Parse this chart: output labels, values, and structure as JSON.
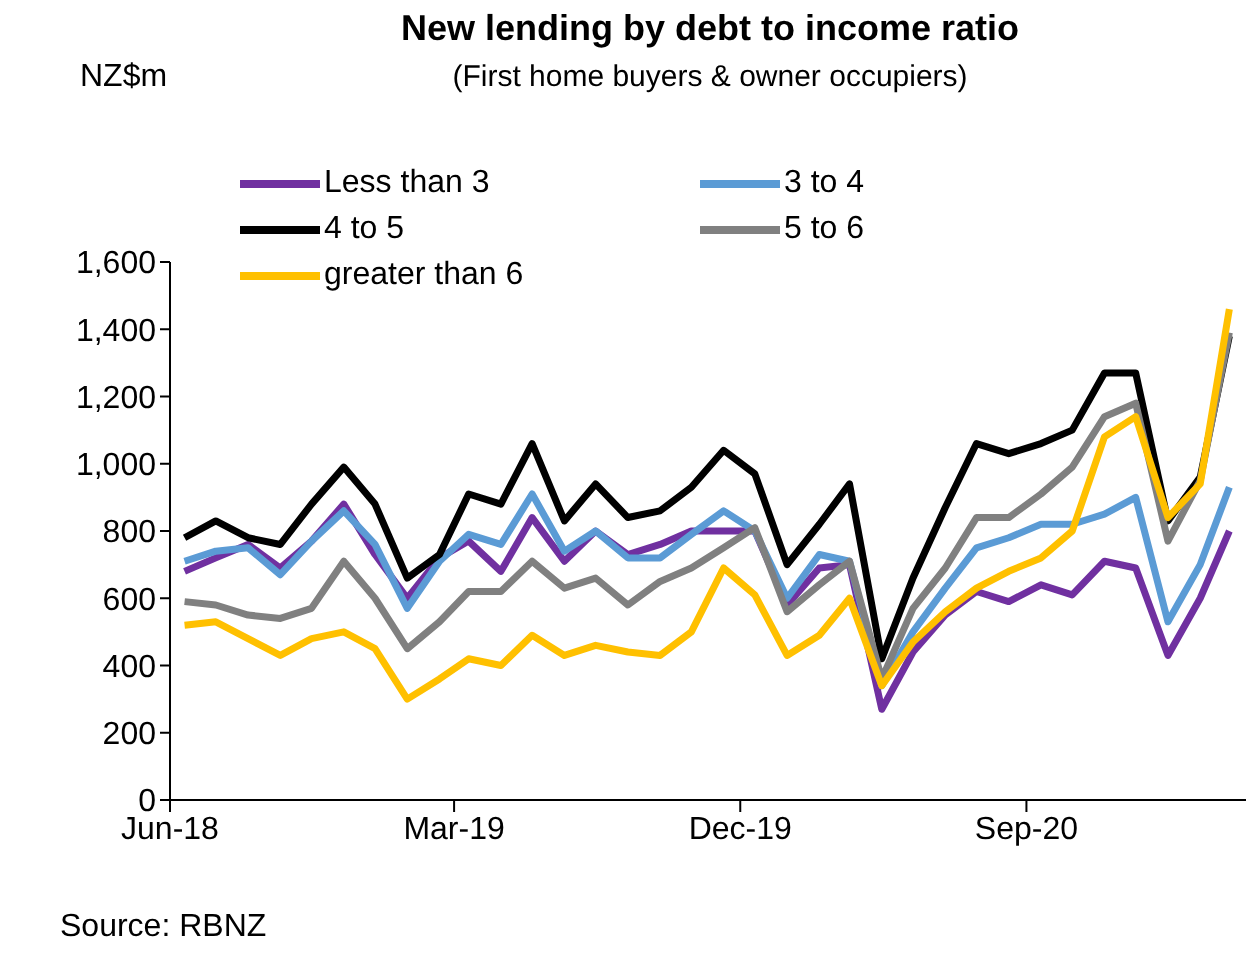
{
  "chart_data": {
    "type": "line",
    "title": "New lending by debt to income ratio",
    "subtitle": "(First home buyers & owner occupiers)",
    "ylabel": "NZ$m",
    "annotations": [
      "Source: RBNZ"
    ],
    "x": [
      "2018-06-15",
      "2018-07-15",
      "2018-08-15",
      "2018-09-15",
      "2018-10-15",
      "2018-11-15",
      "2018-12-15",
      "2019-01-15",
      "2019-02-15",
      "2019-03-15",
      "2019-04-15",
      "2019-05-15",
      "2019-06-15",
      "2019-07-15",
      "2019-08-15",
      "2019-09-15",
      "2019-10-15",
      "2019-11-15",
      "2019-12-15",
      "2020-01-15",
      "2020-02-15",
      "2020-03-15",
      "2020-04-15",
      "2020-05-15",
      "2020-06-15",
      "2020-07-15",
      "2020-08-15",
      "2020-09-15",
      "2020-10-15",
      "2020-11-15",
      "2020-12-15",
      "2021-01-15",
      "2021-02-15",
      "2021-03-15"
    ],
    "xlim": [
      "2018-06-01",
      "2021-03-31"
    ],
    "xticks": [
      {
        "value": "2018-06-01",
        "label": "Jun-18"
      },
      {
        "value": "2019-03-01",
        "label": "Mar-19"
      },
      {
        "value": "2019-12-01",
        "label": "Dec-19"
      },
      {
        "value": "2020-09-01",
        "label": "Sep-20"
      }
    ],
    "ylim": [
      0,
      1600
    ],
    "yticks": [
      {
        "value": 0,
        "label": "0"
      },
      {
        "value": 200,
        "label": "200"
      },
      {
        "value": 400,
        "label": "400"
      },
      {
        "value": 600,
        "label": "600"
      },
      {
        "value": 800,
        "label": "800"
      },
      {
        "value": 1000,
        "label": "1,000"
      },
      {
        "value": 1200,
        "label": "1,200"
      },
      {
        "value": 1400,
        "label": "1,400"
      },
      {
        "value": 1600,
        "label": "1,600"
      }
    ],
    "series": [
      {
        "name": "Less than 3",
        "color": "#7030a0",
        "values": [
          680,
          720,
          760,
          690,
          770,
          880,
          730,
          600,
          720,
          770,
          680,
          840,
          710,
          800,
          730,
          760,
          800,
          800,
          800,
          580,
          690,
          700,
          270,
          440,
          550,
          620,
          590,
          640,
          610,
          710,
          690,
          430,
          600,
          800
        ]
      },
      {
        "name": "3 to 4",
        "color": "#5b9bd5",
        "values": [
          710,
          740,
          750,
          670,
          770,
          860,
          760,
          570,
          710,
          790,
          760,
          910,
          740,
          800,
          720,
          720,
          790,
          860,
          800,
          600,
          730,
          710,
          340,
          500,
          630,
          750,
          780,
          820,
          820,
          850,
          900,
          530,
          700,
          930
        ]
      },
      {
        "name": "4 to 5",
        "color": "#000000",
        "values": [
          780,
          830,
          780,
          760,
          880,
          990,
          880,
          660,
          730,
          910,
          880,
          1060,
          830,
          940,
          840,
          860,
          930,
          1040,
          970,
          700,
          820,
          940,
          420,
          660,
          870,
          1060,
          1030,
          1060,
          1100,
          1270,
          1270,
          830,
          960,
          1380
        ]
      },
      {
        "name": "5 to 6",
        "color": "#808080",
        "values": [
          590,
          580,
          550,
          540,
          570,
          710,
          600,
          450,
          530,
          620,
          620,
          710,
          630,
          660,
          580,
          650,
          690,
          750,
          810,
          560,
          640,
          710,
          360,
          570,
          690,
          840,
          840,
          910,
          990,
          1140,
          1180,
          770,
          950,
          1390
        ]
      },
      {
        "name": "greater than 6",
        "color": "#ffc000",
        "values": [
          520,
          530,
          480,
          430,
          480,
          500,
          450,
          300,
          360,
          420,
          400,
          490,
          430,
          460,
          440,
          430,
          500,
          690,
          610,
          430,
          490,
          600,
          340,
          470,
          560,
          630,
          680,
          720,
          800,
          1080,
          1140,
          840,
          940,
          1460
        ]
      }
    ],
    "legend": "top",
    "grid": false,
    "marker": "none",
    "line_style": "solid"
  }
}
